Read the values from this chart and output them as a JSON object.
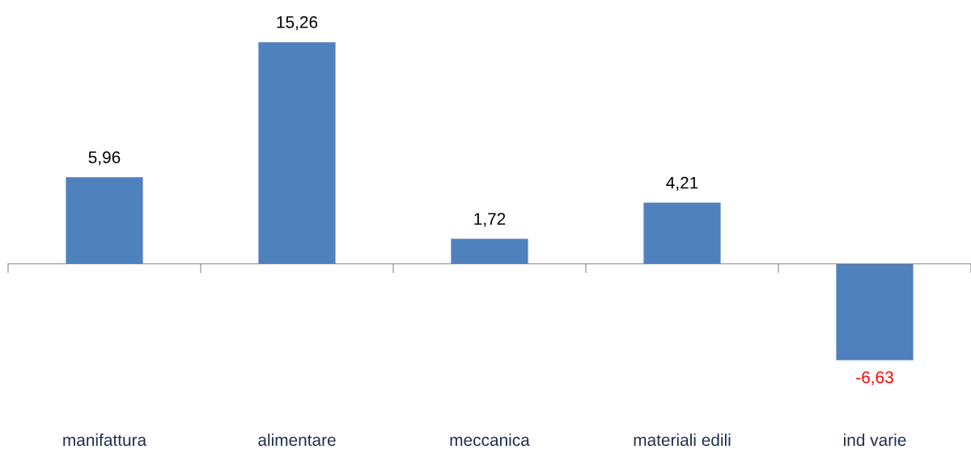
{
  "chart_data": {
    "type": "bar",
    "categories": [
      "manifattura",
      "alimentare",
      "meccanica",
      "materiali edili",
      "ind varie"
    ],
    "values": [
      5.96,
      15.26,
      1.72,
      4.21,
      -6.63
    ],
    "value_labels": [
      "5,96",
      "15,26",
      "1,72",
      "4,21",
      "-6,63"
    ],
    "color": "#4f81bd",
    "grid": false,
    "legend": false
  }
}
